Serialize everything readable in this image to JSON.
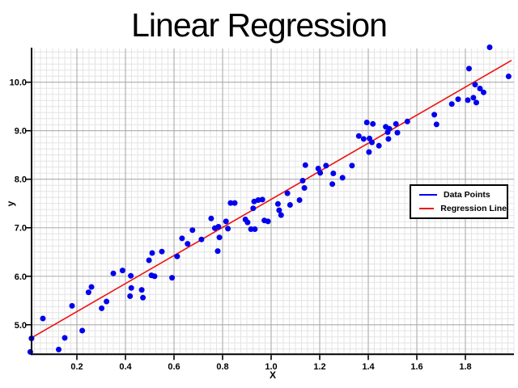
{
  "chart_data": {
    "type": "scatter",
    "title": "Linear Regression",
    "xlabel": "X",
    "ylabel": "y",
    "xlim": [
      0.0133,
      2.0
    ],
    "ylim": [
      4.408,
      10.695
    ],
    "x_major_ticks": [
      0.2,
      0.4,
      0.6,
      0.8,
      1.0,
      1.2,
      1.4,
      1.6,
      1.8
    ],
    "x_tick_labels": [
      "0.2",
      "0.4",
      "0.6",
      "0.8",
      "1.0",
      "1.2",
      "1.4",
      "1.6",
      "1.8"
    ],
    "y_major_ticks": [
      5.0,
      6.0,
      7.0,
      8.0,
      9.0,
      10.0
    ],
    "y_tick_labels": [
      "5.0",
      "6.0",
      "7.0",
      "8.0",
      "9.0",
      "10.0"
    ],
    "x_minor_step": 0.025,
    "y_minor_step": 0.125,
    "grid": "major+minor",
    "legend": {
      "position": "center-right",
      "entries": [
        {
          "label": "Data Points",
          "color": "#0000ee",
          "marker": "line"
        },
        {
          "label": "Regression Line",
          "color": "#ee1111",
          "marker": "line"
        }
      ]
    },
    "series": [
      {
        "name": "Data Points",
        "type": "scatter",
        "color": "#0000ee",
        "points": [
          [
            0.008,
            4.44
          ],
          [
            0.013,
            4.72
          ],
          [
            0.06,
            5.13
          ],
          [
            0.125,
            4.49
          ],
          [
            0.15,
            4.73
          ],
          [
            0.18,
            5.39
          ],
          [
            0.222,
            4.88
          ],
          [
            0.248,
            5.67
          ],
          [
            0.26,
            5.78
          ],
          [
            0.302,
            5.34
          ],
          [
            0.322,
            5.48
          ],
          [
            0.35,
            6.06
          ],
          [
            0.388,
            6.12
          ],
          [
            0.419,
            5.59
          ],
          [
            0.422,
            6.01
          ],
          [
            0.424,
            5.76
          ],
          [
            0.467,
            5.72
          ],
          [
            0.472,
            5.56
          ],
          [
            0.497,
            6.33
          ],
          [
            0.507,
            6.02
          ],
          [
            0.51,
            6.48
          ],
          [
            0.52,
            6.0
          ],
          [
            0.55,
            6.51
          ],
          [
            0.592,
            5.97
          ],
          [
            0.613,
            6.41
          ],
          [
            0.633,
            6.78
          ],
          [
            0.656,
            6.67
          ],
          [
            0.676,
            6.95
          ],
          [
            0.713,
            6.76
          ],
          [
            0.753,
            7.19
          ],
          [
            0.768,
            6.99
          ],
          [
            0.78,
            6.52
          ],
          [
            0.783,
            7.02
          ],
          [
            0.787,
            6.8
          ],
          [
            0.814,
            7.13
          ],
          [
            0.822,
            6.98
          ],
          [
            0.833,
            7.51
          ],
          [
            0.85,
            7.51
          ],
          [
            0.894,
            7.17
          ],
          [
            0.903,
            7.11
          ],
          [
            0.917,
            6.97
          ],
          [
            0.926,
            7.4
          ],
          [
            0.93,
            7.54
          ],
          [
            0.933,
            6.97
          ],
          [
            0.947,
            7.57
          ],
          [
            0.964,
            7.58
          ],
          [
            0.972,
            7.15
          ],
          [
            0.987,
            7.13
          ],
          [
            1.028,
            7.49
          ],
          [
            1.033,
            7.36
          ],
          [
            1.041,
            7.26
          ],
          [
            1.067,
            7.71
          ],
          [
            1.078,
            7.47
          ],
          [
            1.117,
            7.57
          ],
          [
            1.13,
            7.97
          ],
          [
            1.137,
            7.82
          ],
          [
            1.141,
            8.29
          ],
          [
            1.194,
            8.22
          ],
          [
            1.202,
            8.13
          ],
          [
            1.226,
            8.28
          ],
          [
            1.252,
            7.9
          ],
          [
            1.256,
            8.12
          ],
          [
            1.294,
            8.03
          ],
          [
            1.333,
            8.28
          ],
          [
            1.361,
            8.89
          ],
          [
            1.381,
            8.83
          ],
          [
            1.394,
            9.17
          ],
          [
            1.403,
            8.56
          ],
          [
            1.405,
            8.84
          ],
          [
            1.415,
            8.76
          ],
          [
            1.419,
            9.14
          ],
          [
            1.444,
            8.69
          ],
          [
            1.472,
            9.08
          ],
          [
            1.48,
            8.97
          ],
          [
            1.483,
            8.83
          ],
          [
            1.487,
            9.04
          ],
          [
            1.514,
            9.14
          ],
          [
            1.52,
            8.96
          ],
          [
            1.561,
            9.19
          ],
          [
            1.672,
            9.33
          ],
          [
            1.681,
            9.13
          ],
          [
            1.744,
            9.55
          ],
          [
            1.77,
            9.65
          ],
          [
            1.81,
            9.63
          ],
          [
            1.815,
            10.28
          ],
          [
            1.833,
            9.68
          ],
          [
            1.84,
            9.95
          ],
          [
            1.845,
            9.58
          ],
          [
            1.86,
            9.87
          ],
          [
            1.875,
            9.79
          ],
          [
            1.9,
            10.72
          ],
          [
            1.978,
            10.12
          ]
        ]
      },
      {
        "name": "Regression Line",
        "type": "line",
        "color": "#ee1111",
        "points": [
          [
            0.013,
            4.73
          ],
          [
            1.99,
            10.45
          ]
        ]
      }
    ]
  },
  "colors": {
    "background": "#ffffff",
    "point": "#0000ee",
    "line": "#ee1111",
    "grid_major": "#ababab",
    "grid_minor": "#e4e4e4",
    "spine": "#000000",
    "text": "#000000"
  }
}
